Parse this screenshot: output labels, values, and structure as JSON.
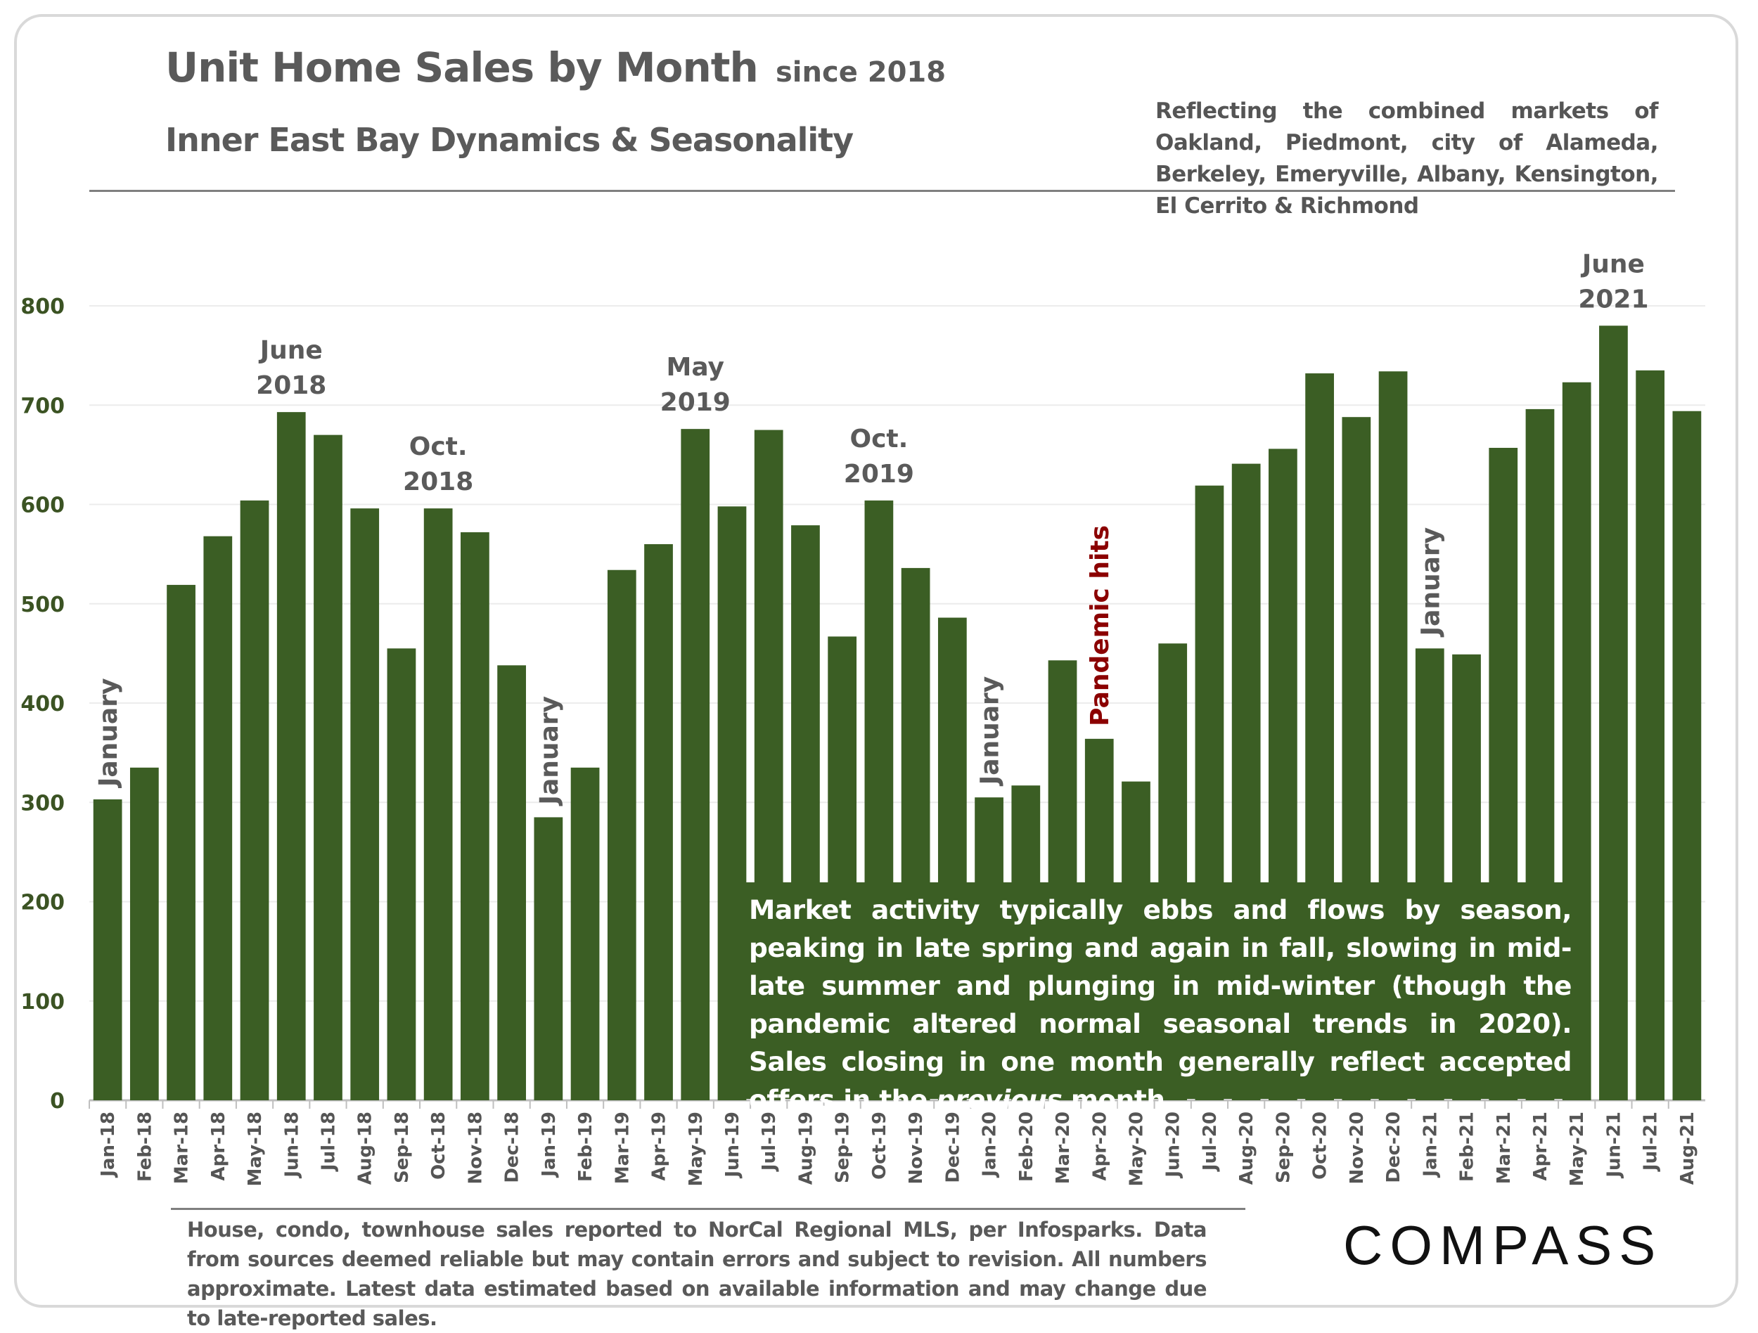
{
  "header": {
    "title": "Unit Home Sales by Month",
    "title_suffix": "since 2018",
    "subtitle": "Inner East Bay Dynamics & Seasonality",
    "reflecting": "Reflecting the combined markets of Oakland, Piedmont, city of Alameda, Berkeley, Emeryville, Albany, Kensington, El Cerrito & Richmond"
  },
  "note": {
    "before": "Market activity typically ebbs and flows by season, peaking in late spring and again in fall, slowing in mid-late summer and plunging in mid-winter (though the pandemic altered normal seasonal trends in 2020). Sales closing in one month generally reflect accepted offers in the ",
    "emph": "previous",
    "after": " month."
  },
  "footnote": "House, condo, townhouse sales reported to NorCal Regional MLS, per Infosparks. Data from sources deemed reliable but may contain errors and subject to revision. All numbers approximate. Latest data estimated based on available information and may change due to late-reported sales.",
  "logo": "COMPASS",
  "colors": {
    "bar": "#3b5e24",
    "tick": "#3b5323",
    "annotation": "#5a5a5a",
    "pandemic": "#8b0000"
  },
  "chart_data": {
    "type": "bar",
    "title": "Unit Home Sales by Month",
    "xlabel": "",
    "ylabel": "",
    "ylim": [
      0,
      800
    ],
    "yticks": [
      0,
      100,
      200,
      300,
      400,
      500,
      600,
      700,
      800
    ],
    "ytick_labels": [
      "0",
      "100",
      "200",
      "300",
      "400",
      "500",
      "600",
      "700",
      "800"
    ],
    "grid": true,
    "categories": [
      "Jan-18",
      "Feb-18",
      "Mar-18",
      "Apr-18",
      "May-18",
      "Jun-18",
      "Jul-18",
      "Aug-18",
      "Sep-18",
      "Oct-18",
      "Nov-18",
      "Dec-18",
      "Jan-19",
      "Feb-19",
      "Mar-19",
      "Apr-19",
      "May-19",
      "Jun-19",
      "Jul-19",
      "Aug-19",
      "Sep-19",
      "Oct-19",
      "Nov-19",
      "Dec-19",
      "Jan-20",
      "Feb-20",
      "Mar-20",
      "Apr-20",
      "May-20",
      "Jun-20",
      "Jul-20",
      "Aug-20",
      "Sep-20",
      "Oct-20",
      "Nov-20",
      "Dec-20",
      "Jan-21",
      "Feb-21",
      "Mar-21",
      "Apr-21",
      "May-21",
      "Jun-21",
      "Jul-21",
      "Aug-21"
    ],
    "values": [
      303,
      335,
      519,
      568,
      604,
      693,
      670,
      596,
      455,
      596,
      572,
      438,
      285,
      335,
      534,
      560,
      676,
      598,
      675,
      579,
      467,
      604,
      536,
      486,
      305,
      317,
      443,
      364,
      321,
      460,
      619,
      641,
      656,
      732,
      688,
      734,
      455,
      449,
      657,
      696,
      723,
      780,
      735,
      694
    ],
    "annotations": [
      {
        "index": 0,
        "lines": [
          "January"
        ],
        "vertical": true
      },
      {
        "index": 5,
        "lines": [
          "June",
          "2018"
        ],
        "vertical": false
      },
      {
        "index": 9,
        "lines": [
          "Oct.",
          "2018"
        ],
        "vertical": false
      },
      {
        "index": 12,
        "lines": [
          "January"
        ],
        "vertical": true
      },
      {
        "index": 16,
        "lines": [
          "May",
          "2019"
        ],
        "vertical": false
      },
      {
        "index": 21,
        "lines": [
          "Oct.",
          "2019"
        ],
        "vertical": false
      },
      {
        "index": 24,
        "lines": [
          "January"
        ],
        "vertical": true
      },
      {
        "index": 27,
        "lines": [
          "Pandemic hits"
        ],
        "vertical": true,
        "color": "pandemic"
      },
      {
        "index": 36,
        "lines": [
          "January"
        ],
        "vertical": true
      },
      {
        "index": 41,
        "lines": [
          "June",
          "2021"
        ],
        "vertical": false
      }
    ]
  }
}
